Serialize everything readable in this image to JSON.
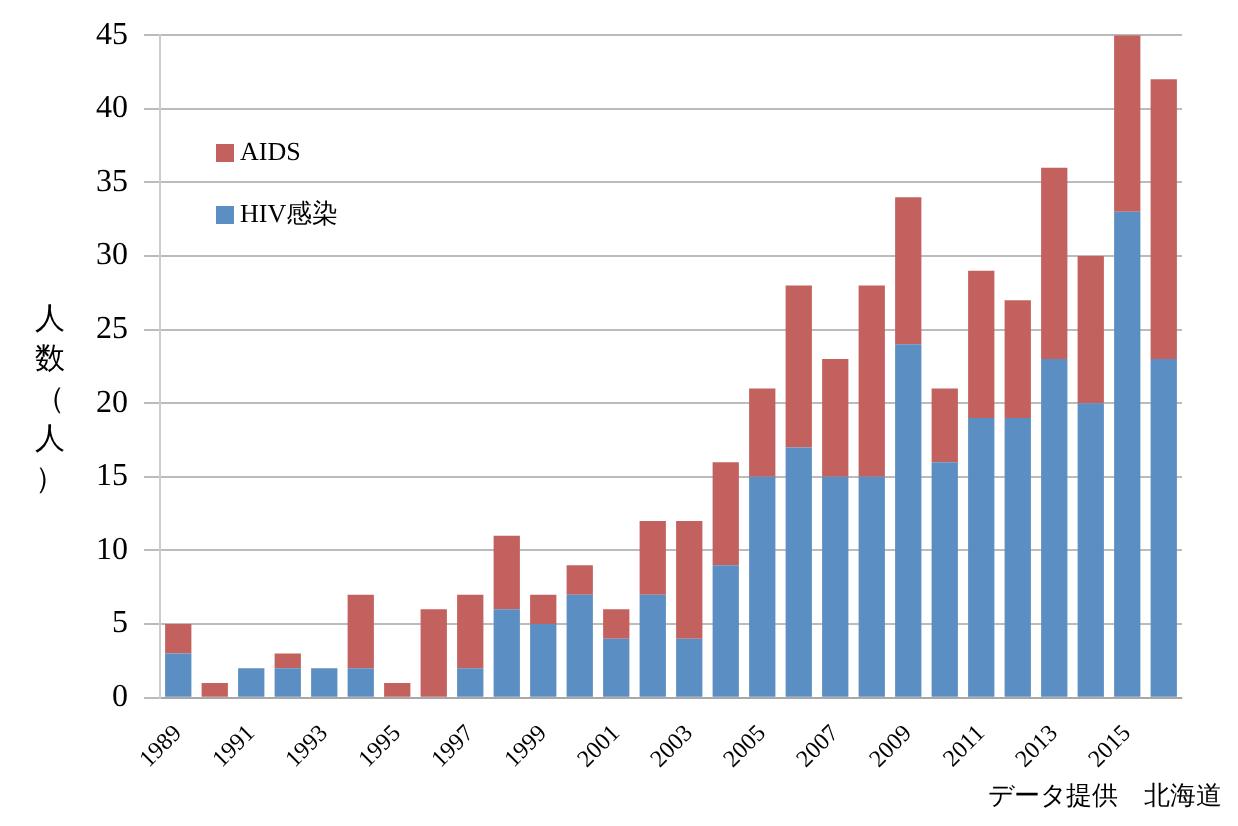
{
  "chart_data": {
    "type": "bar",
    "stacked": true,
    "categories": [
      "1989",
      null,
      "1991",
      null,
      "1993",
      null,
      "1995",
      null,
      "1997",
      null,
      "1999",
      null,
      "2001",
      null,
      "2003",
      null,
      "2005",
      null,
      "2007",
      null,
      "2009",
      null,
      "2011",
      null,
      "2013",
      null,
      "2015",
      null
    ],
    "series": [
      {
        "name": "HIV感染",
        "color": "#5b8ec2",
        "values": [
          3,
          0,
          2,
          2,
          2,
          2,
          0,
          0,
          2,
          6,
          5,
          7,
          4,
          7,
          4,
          9,
          15,
          17,
          15,
          15,
          24,
          16,
          19,
          19,
          23,
          20,
          33,
          23
        ]
      },
      {
        "name": "AIDS",
        "color": "#c3615f",
        "values": [
          2,
          1,
          0,
          1,
          0,
          5,
          1,
          6,
          5,
          5,
          2,
          2,
          2,
          5,
          8,
          7,
          6,
          11,
          8,
          13,
          10,
          5,
          10,
          8,
          13,
          10,
          12,
          19
        ]
      }
    ],
    "ylabel": "人数（人）",
    "ylim": [
      0,
      45
    ],
    "yticks": [
      0,
      5,
      10,
      15,
      20,
      25,
      30,
      35,
      40,
      45
    ],
    "grid": "y",
    "legend": "top left",
    "annotations": [
      "データ提供　北海道"
    ]
  }
}
